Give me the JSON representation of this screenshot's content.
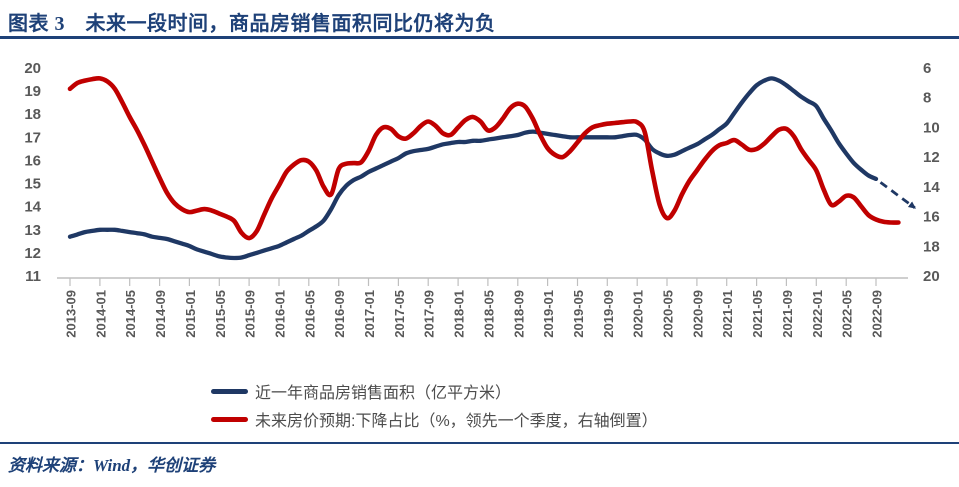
{
  "header": {
    "title": "图表 3　未来一段时间，商品房销售面积同比仍将为负"
  },
  "source_note": "资料来源：Wind，华创证券",
  "colors": {
    "accent_navy": "#1e4178",
    "line_blue": "#1f3864",
    "line_red": "#c00000",
    "axis_text": "#595959",
    "axis_line": "#bfbfbf",
    "legend_text": "#4d4d4d"
  },
  "chart_data": {
    "type": "line",
    "x_start": "2013-09",
    "x_frequency": "monthly",
    "x_tick_labels": [
      "2013-09",
      "2014-01",
      "2014-05",
      "2014-09",
      "2015-01",
      "2015-05",
      "2015-09",
      "2016-01",
      "2016-05",
      "2016-09",
      "2017-01",
      "2017-05",
      "2017-09",
      "2018-01",
      "2018-05",
      "2018-09",
      "2019-01",
      "2019-05",
      "2019-09",
      "2020-01",
      "2020-05",
      "2020-09",
      "2021-01",
      "2021-05",
      "2021-09",
      "2022-01",
      "2022-05",
      "2022-09"
    ],
    "x_tick_interval_months": 4,
    "left_axis": {
      "range": [
        11,
        20
      ],
      "ticks": [
        20,
        19,
        18,
        17,
        16,
        15,
        14,
        13,
        12,
        11
      ]
    },
    "right_axis": {
      "range": [
        6,
        20
      ],
      "ticks": [
        6,
        8,
        10,
        12,
        14,
        16,
        18,
        20
      ],
      "inverted": true
    },
    "grid": "off",
    "legend_position": "bottom",
    "series": [
      {
        "name": "近一年商品房销售面积（亿平方米）",
        "color": "#1f3864",
        "axis": "left",
        "values": [
          12.7,
          12.8,
          12.9,
          12.95,
          13,
          13,
          13,
          12.95,
          12.9,
          12.85,
          12.8,
          12.7,
          12.65,
          12.6,
          12.5,
          12.4,
          12.3,
          12.15,
          12.05,
          11.95,
          11.85,
          11.8,
          11.78,
          11.8,
          11.9,
          12,
          12.1,
          12.2,
          12.3,
          12.45,
          12.6,
          12.75,
          12.95,
          13.15,
          13.4,
          13.9,
          14.5,
          14.9,
          15.15,
          15.3,
          15.5,
          15.65,
          15.8,
          15.95,
          16.1,
          16.3,
          16.4,
          16.45,
          16.5,
          16.6,
          16.7,
          16.75,
          16.8,
          16.8,
          16.85,
          16.85,
          16.9,
          16.95,
          17,
          17.05,
          17.1,
          17.2,
          17.25,
          17.2,
          17.15,
          17.1,
          17.05,
          17,
          17,
          17,
          17,
          17,
          17,
          17,
          17.05,
          17.1,
          17.1,
          16.9,
          16.5,
          16.3,
          16.2,
          16.25,
          16.4,
          16.55,
          16.7,
          16.9,
          17.1,
          17.35,
          17.6,
          18.05,
          18.5,
          18.9,
          19.25,
          19.45,
          19.55,
          19.45,
          19.25,
          19,
          18.75,
          18.55,
          18.35,
          17.8,
          17.3,
          16.75,
          16.3,
          15.9,
          15.6,
          15.35,
          15.2
        ]
      },
      {
        "name": "未来房价预期:下降占比（%，领先一个季度，右轴倒置）",
        "color": "#c00000",
        "axis": "right",
        "values": [
          7.4,
          7,
          6.85,
          6.75,
          6.7,
          6.9,
          7.4,
          8.3,
          9.3,
          10.2,
          11.2,
          12.3,
          13.4,
          14.4,
          15.1,
          15.5,
          15.7,
          15.6,
          15.5,
          15.6,
          15.8,
          16,
          16.3,
          17.1,
          17.45,
          17,
          15.9,
          14.8,
          13.9,
          13,
          12.5,
          12.2,
          12.3,
          12.9,
          14,
          14.5,
          12.8,
          12.45,
          12.4,
          12.35,
          11.6,
          10.5,
          10,
          10.1,
          10.6,
          10.75,
          10.4,
          9.9,
          9.6,
          9.9,
          10.4,
          10.5,
          10,
          9.5,
          9.3,
          9.6,
          10.2,
          10,
          9.4,
          8.7,
          8.4,
          8.6,
          9.4,
          10.5,
          11.4,
          11.85,
          12,
          11.6,
          11,
          10.4,
          10,
          9.85,
          9.75,
          9.7,
          9.65,
          9.6,
          9.65,
          10.3,
          12.9,
          15.2,
          16.1,
          15.6,
          14.5,
          13.6,
          12.9,
          12.2,
          11.6,
          11.2,
          11.05,
          10.85,
          11.15,
          11.5,
          11.45,
          11.1,
          10.6,
          10.15,
          10.1,
          10.6,
          11.5,
          12.2,
          12.9,
          14.2,
          15.2,
          15,
          14.6,
          14.7,
          15.3,
          15.9,
          16.2,
          16.35,
          16.4,
          16.4
        ]
      }
    ],
    "forecast_arrow": {
      "description": "dashed navy arrow extending blue series downward",
      "axis": "left",
      "from": {
        "month_index": 108.6,
        "value": 15.05
      },
      "to": {
        "month_index": 113.2,
        "value": 13.95
      },
      "color": "#1f3864",
      "style": "dashed"
    }
  }
}
